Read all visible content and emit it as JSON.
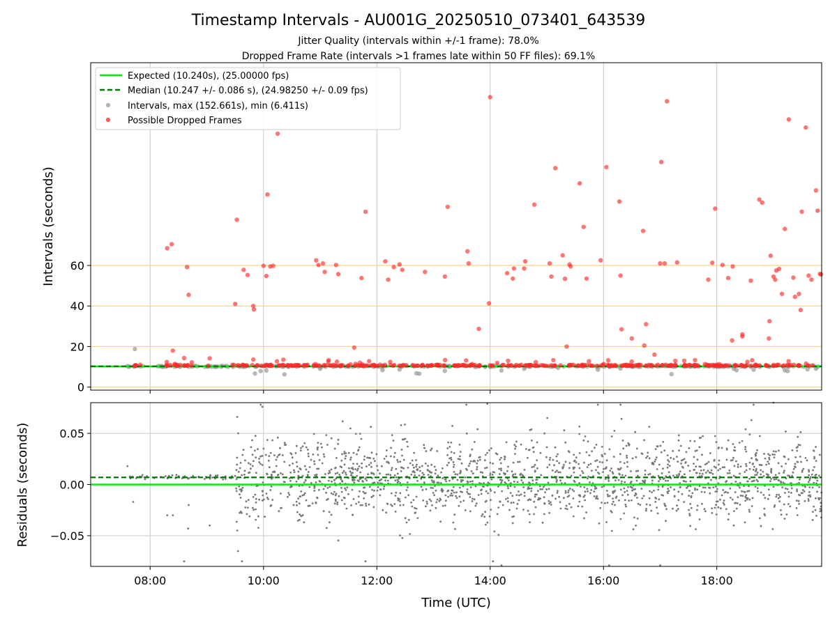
{
  "chart_data": [
    {
      "type": "scatter",
      "title": "Timestamp Intervals - AU001G_20250510_073401_643539",
      "subtitle_lines": [
        "Jitter Quality (intervals within +/-1 frame): 78.0%",
        "Dropped Frame Rate (intervals >1 frames late within 50 FF files): 69.1%"
      ],
      "xlabel": "",
      "ylabel": "Intervals (seconds)",
      "x_unit": "hours UTC",
      "xlim": [
        6.95,
        19.85
      ],
      "ylim": [
        -1.5,
        160
      ],
      "yticks": [
        0,
        20,
        40,
        60
      ],
      "ytick_labels": [
        "0",
        "20",
        "40",
        "60"
      ],
      "grid": true,
      "hlines": [
        0,
        20,
        40,
        60
      ],
      "hline_color": "#ffd27a",
      "legend_position": "upper-left",
      "legend": [
        {
          "label": "Expected (10.240s), (25.00000 fps)",
          "kind": "line",
          "color": "#00ee00",
          "dash": false
        },
        {
          "label": "Median (10.247 +/- 0.086 s), (24.98250 +/- 0.09 fps)",
          "kind": "line",
          "color": "#007a00",
          "dash": true
        },
        {
          "label": "Intervals, max (152.661s), min (6.411s)",
          "kind": "marker",
          "color": "#999999"
        },
        {
          "label": "Possible Dropped Frames",
          "kind": "marker",
          "color": "#ff2a2a"
        }
      ],
      "expected_line": 10.24,
      "median_line": 10.247,
      "series": [
        {
          "name": "Intervals, max (152.661s), min (6.411s)",
          "color": "#999999",
          "baseline": {
            "x_start": 7.6,
            "x_end": 19.8,
            "y": 10.24
          },
          "points": [
            [
              7.73,
              18.8
            ],
            [
              7.6,
              10.4
            ],
            [
              9.85,
              6.7
            ],
            [
              9.95,
              7.9
            ],
            [
              10.05,
              8.2
            ],
            [
              10.37,
              6.3
            ],
            [
              11.0,
              9.0
            ],
            [
              12.1,
              8.4
            ],
            [
              12.4,
              8.7
            ],
            [
              12.7,
              6.8
            ],
            [
              12.75,
              6.6
            ],
            [
              13.2,
              8.0
            ],
            [
              14.2,
              8.2
            ],
            [
              14.6,
              9.0
            ],
            [
              15.2,
              9.5
            ],
            [
              15.9,
              8.6
            ],
            [
              16.3,
              9.2
            ],
            [
              17.2,
              6.4
            ],
            [
              18.3,
              9.0
            ],
            [
              18.35,
              8.3
            ],
            [
              18.65,
              8.6
            ],
            [
              19.2,
              8.3
            ],
            [
              19.25,
              7.9
            ],
            [
              19.6,
              8.8
            ],
            [
              19.75,
              9.1
            ]
          ]
        },
        {
          "name": "Possible Dropped Frames",
          "color": "#ff2a2a",
          "points": [
            [
              8.3,
              68.5
            ],
            [
              8.38,
              70.5
            ],
            [
              8.65,
              59.2
            ],
            [
              8.68,
              45.5
            ],
            [
              8.4,
              18.0
            ],
            [
              8.6,
              14.3
            ],
            [
              9.05,
              14.2
            ],
            [
              9.5,
              41.0
            ],
            [
              9.53,
              82.5
            ],
            [
              9.65,
              57.8
            ],
            [
              9.72,
              55.3
            ],
            [
              9.82,
              40.0
            ],
            [
              9.83,
              38.3
            ],
            [
              9.82,
              13.6
            ],
            [
              10.0,
              59.8
            ],
            [
              10.05,
              54.8
            ],
            [
              10.07,
              95.0
            ],
            [
              10.12,
              59.5
            ],
            [
              10.17,
              59.8
            ],
            [
              10.25,
              125.0
            ],
            [
              10.35,
              13.5
            ],
            [
              10.93,
              62.5
            ],
            [
              10.97,
              60.2
            ],
            [
              11.05,
              61.0
            ],
            [
              11.08,
              56.8
            ],
            [
              11.28,
              60.2
            ],
            [
              11.32,
              55.7
            ],
            [
              11.6,
              19.5
            ],
            [
              11.7,
              12.0
            ],
            [
              11.73,
              53.8
            ],
            [
              11.8,
              86.5
            ],
            [
              12.15,
              62.0
            ],
            [
              12.2,
              53.0
            ],
            [
              12.3,
              59.2
            ],
            [
              12.4,
              60.5
            ],
            [
              12.45,
              57.8
            ],
            [
              12.85,
              56.8
            ],
            [
              13.2,
              54.5
            ],
            [
              13.25,
              88.9
            ],
            [
              13.6,
              67.0
            ],
            [
              13.62,
              61.0
            ],
            [
              13.8,
              28.7
            ],
            [
              13.98,
              41.3
            ],
            [
              14.0,
              143.0
            ],
            [
              14.3,
              56.2
            ],
            [
              14.4,
              53.5
            ],
            [
              14.42,
              58.5
            ],
            [
              14.6,
              58.5
            ],
            [
              14.62,
              62.0
            ],
            [
              14.78,
              90.0
            ],
            [
              15.05,
              61.0
            ],
            [
              15.08,
              54.5
            ],
            [
              15.15,
              108.0
            ],
            [
              15.28,
              65.0
            ],
            [
              15.32,
              53.4
            ],
            [
              15.4,
              60.5
            ],
            [
              15.42,
              59.5
            ],
            [
              15.35,
              20.0
            ],
            [
              15.58,
              100.5
            ],
            [
              15.65,
              79.0
            ],
            [
              15.7,
              53.5
            ],
            [
              15.95,
              62.5
            ],
            [
              16.05,
              108.5
            ],
            [
              16.28,
              91.5
            ],
            [
              16.3,
              55.0
            ],
            [
              16.32,
              28.5
            ],
            [
              16.5,
              24.0
            ],
            [
              16.7,
              77.0
            ],
            [
              16.72,
              20.5
            ],
            [
              16.75,
              31.0
            ],
            [
              16.9,
              16.0
            ],
            [
              17.0,
              61.0
            ],
            [
              17.02,
              111.0
            ],
            [
              17.08,
              61.0
            ],
            [
              17.12,
              141.0
            ],
            [
              17.3,
              61.5
            ],
            [
              17.85,
              53.0
            ],
            [
              17.92,
              61.3
            ],
            [
              17.97,
              88.0
            ],
            [
              18.1,
              60.2
            ],
            [
              18.2,
              53.8
            ],
            [
              18.28,
              59.5
            ],
            [
              18.27,
              23.0
            ],
            [
              18.45,
              26.0
            ],
            [
              18.45,
              25.0
            ],
            [
              18.6,
              52.5
            ],
            [
              18.75,
              92.5
            ],
            [
              18.8,
              91.0
            ],
            [
              18.95,
              64.8
            ],
            [
              18.93,
              32.5
            ],
            [
              18.92,
              24.0
            ],
            [
              19.0,
              54.5
            ],
            [
              19.03,
              53.0
            ],
            [
              19.05,
              57.5
            ],
            [
              19.1,
              58.3
            ],
            [
              19.15,
              46.0
            ],
            [
              19.2,
              78.0
            ],
            [
              19.27,
              132.0
            ],
            [
              19.35,
              54.0
            ],
            [
              19.38,
              44.5
            ],
            [
              19.45,
              46.0
            ],
            [
              19.48,
              38.0
            ],
            [
              19.5,
              86.5
            ],
            [
              19.57,
              128.0
            ],
            [
              19.62,
              55.0
            ],
            [
              19.67,
              53.0
            ],
            [
              19.75,
              97.0
            ],
            [
              19.78,
              87.0
            ],
            [
              19.82,
              55.8
            ],
            [
              19.84,
              55.6
            ]
          ]
        }
      ]
    },
    {
      "type": "scatter",
      "title": "",
      "xlabel": "Time (UTC)",
      "ylabel": "Residuals (seconds)",
      "x_unit": "hours UTC",
      "xlim": [
        6.95,
        19.85
      ],
      "ylim": [
        -0.08,
        0.08
      ],
      "xticks": [
        8,
        10,
        12,
        14,
        16,
        18
      ],
      "xtick_labels": [
        "08:00",
        "10:00",
        "12:00",
        "14:00",
        "16:00",
        "18:00"
      ],
      "yticks": [
        -0.05,
        0.0,
        0.05
      ],
      "ytick_labels": [
        "−0.05",
        "0.00",
        "0.05"
      ],
      "grid": true,
      "expected_line": 0.0,
      "median_line": 0.007,
      "series": [
        {
          "name": "",
          "color": "#777777",
          "segments": [
            {
              "x_start": 7.6,
              "x_end": 9.5,
              "center": 0.007,
              "spread": 0.002,
              "count": 70
            },
            {
              "x_start": 9.5,
              "x_end": 19.85,
              "center": 0.005,
              "spread": 0.04,
              "count": 1800
            }
          ],
          "outliers": [
            [
              7.6,
              0.018
            ],
            [
              7.7,
              -0.017
            ],
            [
              8.3,
              -0.03
            ],
            [
              8.4,
              -0.03
            ],
            [
              8.6,
              -0.075
            ],
            [
              8.67,
              -0.043
            ],
            [
              8.68,
              -0.02
            ],
            [
              9.05,
              -0.04
            ],
            [
              9.95,
              0.078
            ],
            [
              9.98,
              0.076
            ],
            [
              9.55,
              -0.065
            ],
            [
              9.62,
              -0.075
            ],
            [
              11.8,
              -0.075
            ],
            [
              13.58,
              0.078
            ],
            [
              13.95,
              0.079
            ],
            [
              14.05,
              -0.075
            ],
            [
              14.2,
              -0.079
            ],
            [
              15.9,
              0.078
            ],
            [
              16.1,
              -0.079
            ],
            [
              16.3,
              0.078
            ],
            [
              17.0,
              -0.079
            ],
            [
              18.65,
              0.078
            ],
            [
              19.0,
              0.08
            ]
          ]
        }
      ]
    }
  ]
}
